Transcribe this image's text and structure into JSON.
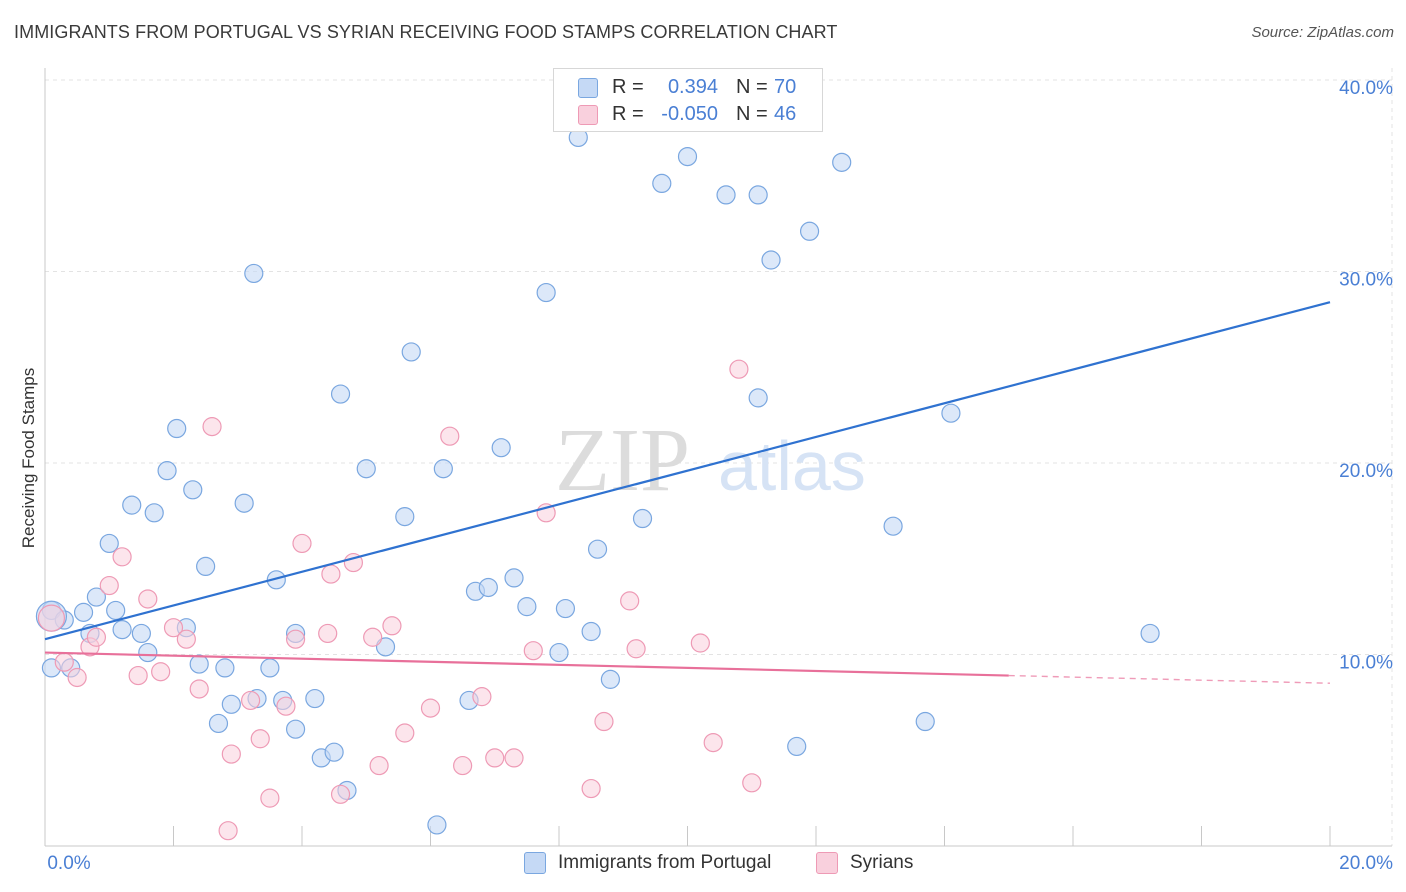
{
  "title": "IMMIGRANTS FROM PORTUGAL VS SYRIAN RECEIVING FOOD STAMPS CORRELATION CHART",
  "source": "Source: ZipAtlas.com",
  "watermark": {
    "zip": "ZIP",
    "atlas": "atlas"
  },
  "legend": {
    "rows": [
      {
        "r_label": "R =",
        "r_value": "0.394",
        "n_label": "N =",
        "n_value": "70"
      },
      {
        "r_label": "R =",
        "r_value": "-0.050",
        "n_label": "N =",
        "n_value": "46"
      }
    ]
  },
  "bottom_legend": {
    "series1": "Immigrants from Portugal",
    "series2": "Syrians"
  },
  "colors": {
    "blue_fill": "#c5d9f5",
    "blue_stroke": "#7aa7e0",
    "blue_line": "#2f72d0",
    "pink_fill": "#f9d0dd",
    "pink_stroke": "#ee9ab5",
    "pink_line": "#e8709a",
    "tick_label": "#4a7fd4",
    "grid": "#e3e3e3"
  },
  "chart_data": {
    "type": "scatter",
    "title": "IMMIGRANTS FROM PORTUGAL VS SYRIAN RECEIVING FOOD STAMPS CORRELATION CHART",
    "xlabel": "",
    "ylabel": "Receiving Food Stamps",
    "xlim": [
      0,
      20
    ],
    "ylim": [
      0,
      40
    ],
    "x_tick_labels": [
      "0.0%",
      "20.0%"
    ],
    "y_ticks": [
      10,
      20,
      30,
      40
    ],
    "y_tick_labels": [
      "10.0%",
      "20.0%",
      "30.0%",
      "40.0%"
    ],
    "grid": true,
    "series": [
      {
        "name": "Immigrants from Portugal",
        "r": 0.394,
        "n": 70,
        "trend": {
          "x0": 0,
          "y0": 10.8,
          "x1": 20,
          "y1": 28.4
        },
        "points": [
          [
            0.1,
            12.3
          ],
          [
            0.1,
            9.3
          ],
          [
            0.3,
            11.8
          ],
          [
            0.4,
            9.3
          ],
          [
            0.6,
            12.2
          ],
          [
            0.7,
            11.1
          ],
          [
            0.8,
            13.0
          ],
          [
            1.0,
            15.8
          ],
          [
            1.1,
            12.3
          ],
          [
            1.2,
            11.3
          ],
          [
            1.35,
            17.8
          ],
          [
            1.5,
            11.1
          ],
          [
            1.6,
            10.1
          ],
          [
            1.7,
            17.4
          ],
          [
            1.9,
            19.6
          ],
          [
            2.05,
            21.8
          ],
          [
            2.2,
            11.4
          ],
          [
            2.3,
            18.6
          ],
          [
            2.4,
            9.5
          ],
          [
            2.5,
            14.6
          ],
          [
            2.7,
            6.4
          ],
          [
            2.8,
            9.3
          ],
          [
            2.9,
            7.4
          ],
          [
            3.1,
            17.9
          ],
          [
            3.25,
            29.9
          ],
          [
            3.3,
            7.7
          ],
          [
            3.5,
            9.3
          ],
          [
            3.6,
            13.9
          ],
          [
            3.7,
            7.6
          ],
          [
            3.9,
            11.1
          ],
          [
            3.9,
            6.1
          ],
          [
            4.2,
            7.7
          ],
          [
            4.3,
            4.6
          ],
          [
            4.5,
            4.9
          ],
          [
            4.6,
            23.6
          ],
          [
            4.7,
            2.9
          ],
          [
            5.0,
            19.7
          ],
          [
            5.3,
            10.4
          ],
          [
            5.6,
            17.2
          ],
          [
            5.7,
            25.8
          ],
          [
            6.1,
            1.1
          ],
          [
            6.2,
            19.7
          ],
          [
            6.6,
            7.6
          ],
          [
            6.7,
            13.3
          ],
          [
            6.9,
            13.5
          ],
          [
            7.1,
            20.8
          ],
          [
            7.3,
            14.0
          ],
          [
            7.5,
            12.5
          ],
          [
            7.8,
            28.9
          ],
          [
            8.0,
            10.1
          ],
          [
            8.1,
            12.4
          ],
          [
            8.3,
            37.0
          ],
          [
            8.5,
            11.2
          ],
          [
            8.6,
            15.5
          ],
          [
            8.8,
            8.7
          ],
          [
            9.3,
            17.1
          ],
          [
            9.6,
            34.6
          ],
          [
            10.0,
            36.0
          ],
          [
            10.6,
            34.0
          ],
          [
            11.1,
            34.0
          ],
          [
            11.1,
            23.4
          ],
          [
            11.3,
            30.6
          ],
          [
            11.7,
            5.2
          ],
          [
            11.9,
            32.1
          ],
          [
            12.4,
            35.7
          ],
          [
            13.2,
            16.7
          ],
          [
            13.7,
            6.5
          ],
          [
            14.1,
            22.6
          ],
          [
            17.2,
            11.1
          ],
          [
            0.1,
            12.0
          ]
        ]
      },
      {
        "name": "Syrians",
        "r": -0.05,
        "n": 46,
        "trend": {
          "x0": 0,
          "y0": 10.1,
          "x1": 15.0,
          "y1": 8.9,
          "dashed_to_x": 20,
          "dashed_to_y": 8.5
        },
        "points": [
          [
            0.1,
            11.9
          ],
          [
            0.3,
            9.6
          ],
          [
            0.5,
            8.8
          ],
          [
            0.7,
            10.4
          ],
          [
            0.8,
            10.9
          ],
          [
            1.0,
            13.6
          ],
          [
            1.2,
            15.1
          ],
          [
            1.45,
            8.9
          ],
          [
            1.6,
            12.9
          ],
          [
            1.8,
            9.1
          ],
          [
            2.0,
            11.4
          ],
          [
            2.2,
            10.8
          ],
          [
            2.4,
            8.2
          ],
          [
            2.6,
            21.9
          ],
          [
            2.85,
            0.8
          ],
          [
            2.9,
            4.8
          ],
          [
            3.2,
            7.6
          ],
          [
            3.35,
            5.6
          ],
          [
            3.5,
            2.5
          ],
          [
            3.75,
            7.3
          ],
          [
            3.9,
            10.8
          ],
          [
            4.0,
            15.8
          ],
          [
            4.4,
            11.1
          ],
          [
            4.45,
            14.2
          ],
          [
            4.6,
            2.7
          ],
          [
            4.8,
            14.8
          ],
          [
            5.1,
            10.9
          ],
          [
            5.2,
            4.2
          ],
          [
            5.4,
            11.5
          ],
          [
            5.6,
            5.9
          ],
          [
            6.0,
            7.2
          ],
          [
            6.3,
            21.4
          ],
          [
            6.5,
            4.2
          ],
          [
            6.8,
            7.8
          ],
          [
            7.0,
            4.6
          ],
          [
            7.3,
            4.6
          ],
          [
            7.6,
            10.2
          ],
          [
            7.8,
            17.4
          ],
          [
            8.5,
            3.0
          ],
          [
            8.7,
            6.5
          ],
          [
            9.1,
            12.8
          ],
          [
            9.2,
            10.3
          ],
          [
            10.2,
            10.6
          ],
          [
            10.4,
            5.4
          ],
          [
            10.8,
            24.9
          ],
          [
            11.0,
            3.3
          ]
        ]
      }
    ]
  }
}
